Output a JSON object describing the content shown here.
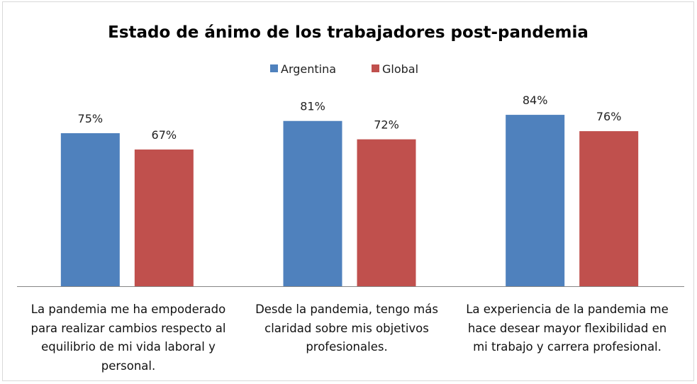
{
  "chart_data": {
    "type": "bar",
    "title": "Estado de ánimo de los trabajadores post-pandemia",
    "categories": [
      "La pandemia me ha empoderado para realizar cambios respecto al equilibrio de mi vida laboral y personal.",
      "Desde la pandemia, tengo más claridad sobre mis objetivos profesionales.",
      "La experiencia de la pandemia me hace desear mayor flexibilidad en mi trabajo y carrera profesional."
    ],
    "series": [
      {
        "name": "Argentina",
        "values": [
          75,
          81,
          84
        ],
        "labels": [
          "75%",
          "81%",
          "84%"
        ],
        "color": "#4F81BD"
      },
      {
        "name": "Global",
        "values": [
          67,
          72,
          76
        ],
        "labels": [
          "67%",
          "72%",
          "76%"
        ],
        "color": "#C0504D"
      }
    ],
    "ylim": [
      0,
      100
    ],
    "unit": "%",
    "grid": false,
    "legend": "top-center",
    "xlabel": "",
    "ylabel": ""
  }
}
